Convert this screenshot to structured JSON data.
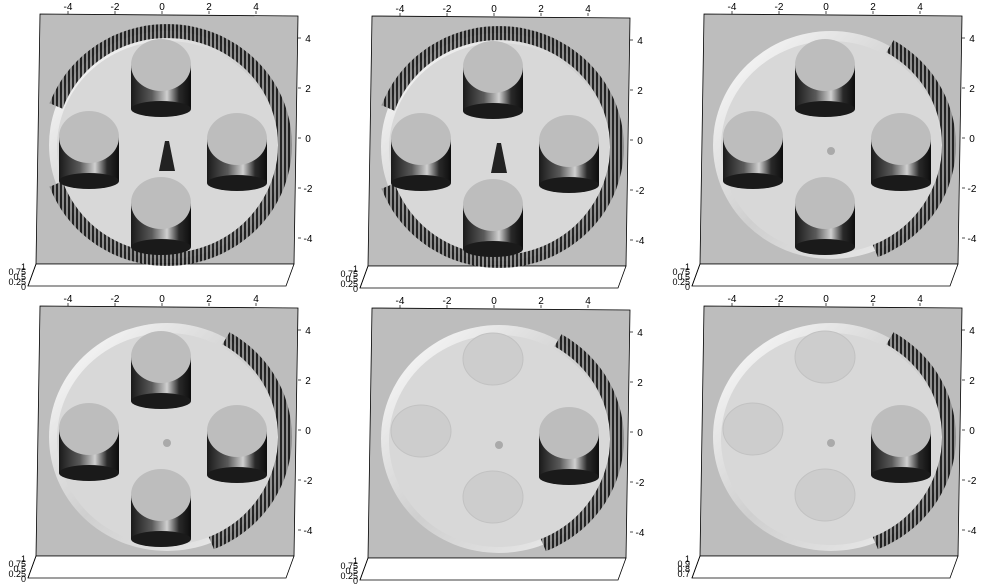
{
  "panels": [
    {
      "id": "t1",
      "x_ticks": [
        "-4",
        "-2",
        "0",
        "2",
        "4"
      ],
      "y_ticks": [
        "4",
        "2",
        "0",
        "-2",
        "-4"
      ],
      "z_ticks": [
        "1",
        "0.75",
        "0.5",
        "0.25",
        "0"
      ],
      "cylinders_visible": [
        "top",
        "left",
        "right",
        "bottom"
      ],
      "center_spike": true,
      "rim_wall_extent": "full"
    },
    {
      "id": "t2",
      "x_ticks": [
        "-4",
        "-2",
        "0",
        "2",
        "4"
      ],
      "y_ticks": [
        "4",
        "2",
        "0",
        "-2",
        "-4"
      ],
      "z_ticks": [
        "1",
        "0.75",
        "0.5",
        "0.25",
        "0"
      ],
      "cylinders_visible": [
        "top",
        "left",
        "right",
        "bottom"
      ],
      "center_spike": true,
      "rim_wall_extent": "full"
    },
    {
      "id": "t3",
      "x_ticks": [
        "-4",
        "-2",
        "0",
        "2",
        "4"
      ],
      "y_ticks": [
        "4",
        "2",
        "0",
        "-2",
        "-4"
      ],
      "z_ticks": [
        "1",
        "0.75",
        "0.5",
        "0.25",
        "0"
      ],
      "cylinders_visible": [
        "top",
        "left",
        "right",
        "bottom"
      ],
      "center_spike": false,
      "rim_wall_extent": "right"
    },
    {
      "id": "t4",
      "x_ticks": [
        "-4",
        "-2",
        "0",
        "2",
        "4"
      ],
      "y_ticks": [
        "4",
        "2",
        "0",
        "-2",
        "-4"
      ],
      "z_ticks": [
        "1",
        "0.75",
        "0.5",
        "0.25",
        "0"
      ],
      "cylinders_visible": [
        "top",
        "left",
        "right",
        "bottom"
      ],
      "center_spike": false,
      "rim_wall_extent": "right"
    },
    {
      "id": "t5",
      "x_ticks": [
        "-4",
        "-2",
        "0",
        "2",
        "4"
      ],
      "y_ticks": [
        "4",
        "2",
        "0",
        "-2",
        "-4"
      ],
      "z_ticks": [
        "1",
        "0.75",
        "0.5",
        "0.25",
        "0"
      ],
      "cylinders_visible": [
        "right"
      ],
      "center_spike": false,
      "rim_wall_extent": "right"
    },
    {
      "id": "t6",
      "x_ticks": [
        "-4",
        "-2",
        "0",
        "2",
        "4"
      ],
      "y_ticks": [
        "4",
        "2",
        "0",
        "-2",
        "-4"
      ],
      "z_ticks": [
        "1",
        "0.9",
        "0.8",
        "0.7"
      ],
      "cylinders_visible": [
        "right"
      ],
      "center_spike": false,
      "rim_wall_extent": "right"
    }
  ]
}
